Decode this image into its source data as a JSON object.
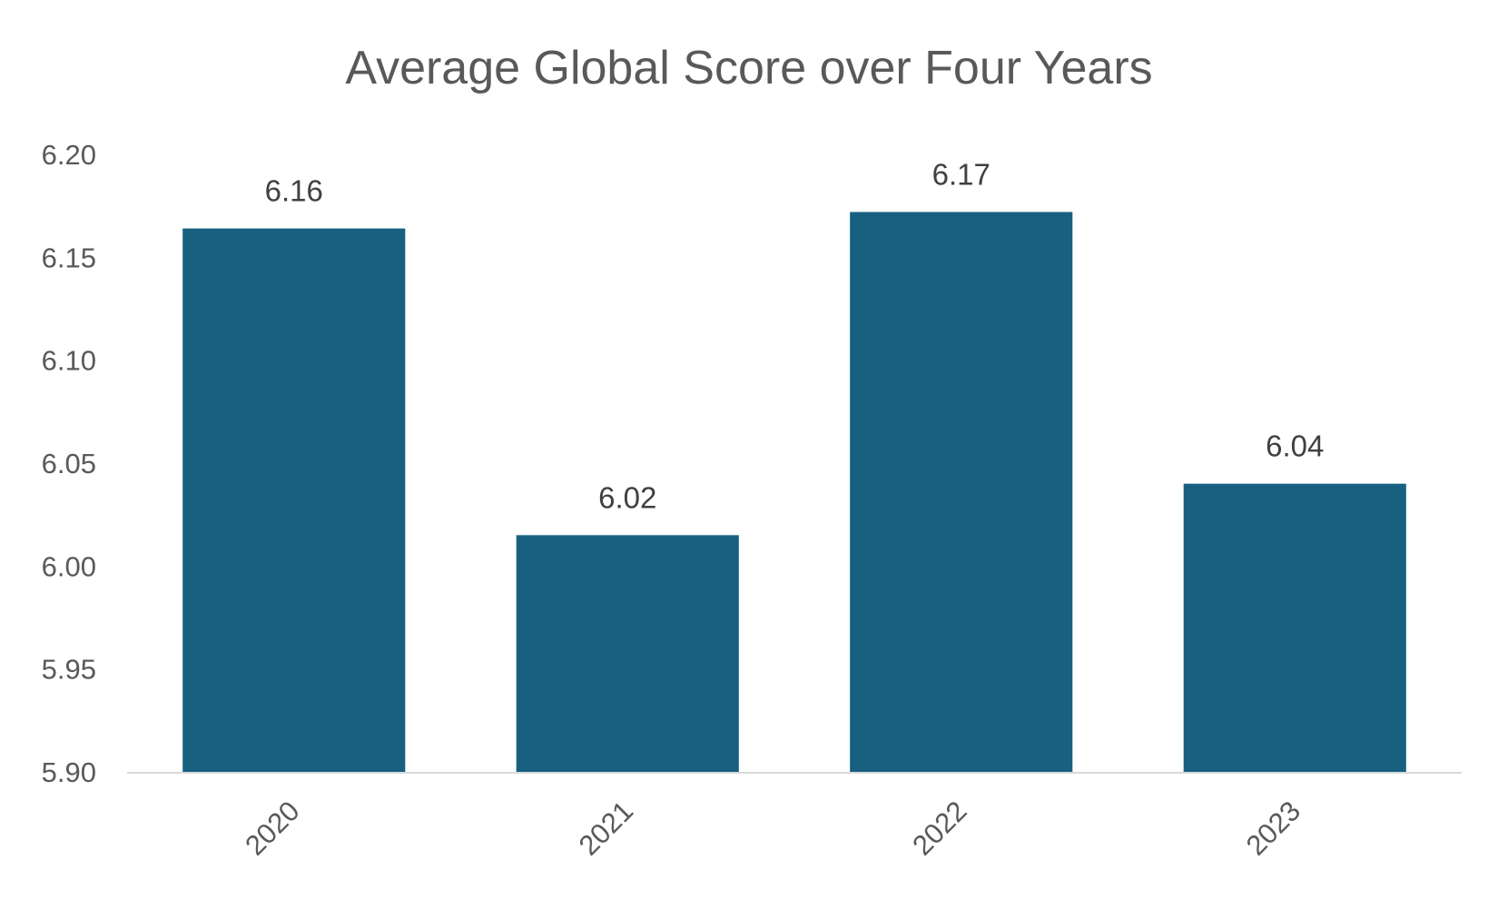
{
  "chart_data": {
    "type": "bar",
    "title": "Average Global Score over Four Years",
    "xlabel": "",
    "ylabel": "",
    "categories": [
      "2020",
      "2021",
      "2022",
      "2023"
    ],
    "values": [
      6.164,
      6.015,
      6.172,
      6.04
    ],
    "data_labels": [
      "6.16",
      "6.02",
      "6.17",
      "6.04"
    ],
    "ylim": [
      5.9,
      6.2
    ],
    "yticks": [
      "5.90",
      "5.95",
      "6.00",
      "6.05",
      "6.10",
      "6.15",
      "6.20"
    ],
    "grid": false,
    "legend": "none",
    "colors": {
      "bar": "#17607f",
      "axis_line": "#d9d9d9",
      "text": "#595959",
      "label": "#404040"
    }
  }
}
